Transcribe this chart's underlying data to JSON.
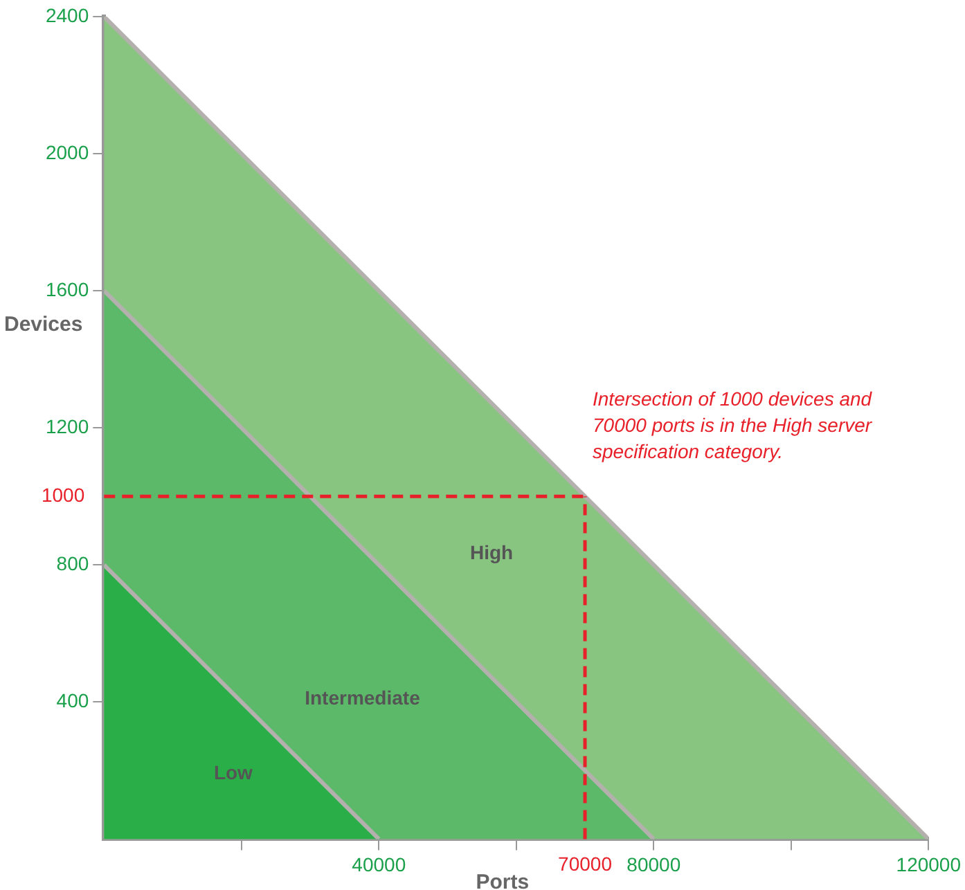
{
  "chart_data": {
    "type": "area",
    "xlabel": "Ports",
    "ylabel": "Devices",
    "series": [
      {
        "name": "High",
        "color": "#88c580",
        "x": [
          0,
          120000
        ],
        "values": [
          2400,
          0
        ]
      },
      {
        "name": "Intermediate",
        "color": "#5db96a",
        "x": [
          0,
          80000
        ],
        "values": [
          1600,
          0
        ]
      },
      {
        "name": "Low",
        "color": "#2aae48",
        "x": [
          0,
          40000
        ],
        "values": [
          800,
          0
        ]
      }
    ],
    "xlim": [
      0,
      120000
    ],
    "ylim": [
      0,
      2400
    ],
    "xticks": [
      {
        "value": 20000,
        "label": null
      },
      40000,
      {
        "value": 60000,
        "label": null
      },
      80000,
      {
        "value": 100000,
        "label": null
      },
      120000
    ],
    "yticks": [
      400,
      800,
      1200,
      1600,
      2000,
      2400
    ],
    "ref_lines": [
      {
        "axis": "y",
        "value": 1000,
        "label": "1000",
        "color": "#e8202a",
        "line_style": "dashed"
      },
      {
        "axis": "x",
        "value": 70000,
        "label": "70000",
        "color": "#e8202a",
        "line_style": "dashed"
      }
    ],
    "annotations": [
      "Intersection of 1000 devices and 70000 ports is in the High server specification category."
    ],
    "grid": false,
    "legend": false
  }
}
